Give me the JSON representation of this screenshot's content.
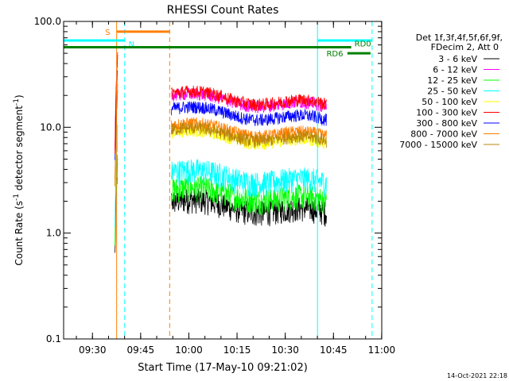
{
  "chart_data": {
    "type": "line",
    "title": "RHESSI Count Rates",
    "xlabel": "Start Time (17-May-10 09:21:02)",
    "ylabel_main": "Count Rate (s",
    "ylabel_sup1": "-1",
    "ylabel_mid": " detector segment",
    "ylabel_sup2": "-1",
    "ylabel_end": ")",
    "yscale": "log",
    "ylim": [
      0.1,
      100
    ],
    "xlim_minutes": [
      0,
      99
    ],
    "x_ticks": [
      {
        "label": "09:30",
        "minute": 8.97
      },
      {
        "label": "09:45",
        "minute": 23.97
      },
      {
        "label": "10:00",
        "minute": 38.97
      },
      {
        "label": "10:15",
        "minute": 53.97
      },
      {
        "label": "10:30",
        "minute": 68.97
      },
      {
        "label": "10:45",
        "minute": 83.97
      },
      {
        "label": "11:00",
        "minute": 98.97
      }
    ],
    "y_ticks": [
      {
        "label": "0.1",
        "value": 0.1
      },
      {
        "label": "1.0",
        "value": 1
      },
      {
        "label": "10.0",
        "value": 10
      },
      {
        "label": "100.0",
        "value": 100
      }
    ],
    "legend_header": [
      "Det 1f,3f,4f,5f,6f,9f,",
      "FDecim 2, Att 0"
    ],
    "legend_position": "right",
    "series": [
      {
        "name": "3 - 6 keV",
        "color": "#000000",
        "level": 2.0
      },
      {
        "name": "6 - 12 keV",
        "color": "#ff00ff",
        "level": 20.0
      },
      {
        "name": "12 - 25 keV",
        "color": "#00ff00",
        "level": 2.6
      },
      {
        "name": "25 - 50 keV",
        "color": "#00ffff",
        "level": 3.8
      },
      {
        "name": "50 - 100 keV",
        "color": "#ffff00",
        "level": 9.0
      },
      {
        "name": "100 - 300 keV",
        "color": "#ff0000",
        "level": 21.0
      },
      {
        "name": "300 - 800 keV",
        "color": "#0000ff",
        "level": 15.0
      },
      {
        "name": "800 - 7000 keV",
        "color": "#ff8000",
        "level": 10.5
      },
      {
        "name": "7000 - 15000 keV",
        "color": "#b8860b",
        "level": 9.5
      }
    ],
    "segments": [
      {
        "start": 16.0,
        "end": 16.9
      },
      {
        "start": 33.5,
        "end": 81.8
      }
    ],
    "annotations": [
      {
        "label": "S",
        "color": "#ff8000",
        "value": 80
      },
      {
        "label": "N",
        "color": "#00ffff",
        "value": 66
      },
      {
        "label": "RD0",
        "color": "#008000",
        "value": 57
      },
      {
        "label": "RD6",
        "color": "#008000",
        "value": 50
      }
    ],
    "vertical_markers": [
      {
        "minute": 0.0,
        "color": "#00ffff",
        "style": "solid"
      },
      {
        "minute": 16.5,
        "color": "#ff8000",
        "style": "solid"
      },
      {
        "minute": 19.0,
        "color": "#00ffff",
        "style": "dashed"
      },
      {
        "minute": 33.0,
        "color": "#ff8000",
        "style": "dashed"
      },
      {
        "minute": 79.0,
        "color": "#00ffff",
        "style": "solid"
      },
      {
        "minute": 96.0,
        "color": "#00ffff",
        "style": "dashed"
      }
    ]
  },
  "footer_timestamp": "14-Oct-2021 22:18"
}
